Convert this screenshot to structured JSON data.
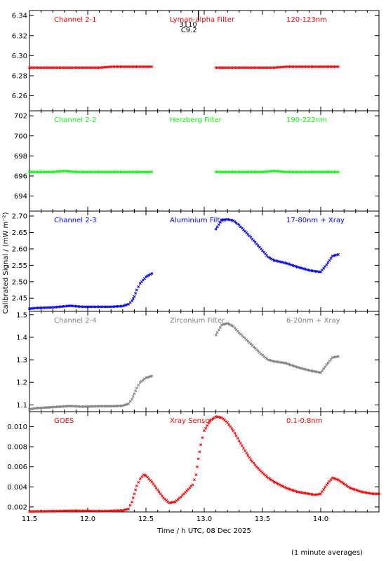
{
  "chart_data": {
    "type": "scatter",
    "xlabel": "Time / h UTC, 08 Dec 2025",
    "ylabel": "Calibrated Signal / (mW m⁻²)",
    "footnote": "(1 minute averages)",
    "xlim": [
      11.5,
      14.5
    ],
    "xticks": [
      "11.5",
      "12.0",
      "12.5",
      "13.0",
      "13.5",
      "14.0"
    ],
    "flare_marker": {
      "x": 12.95,
      "label_top": "3110",
      "label_bottom": "C9.2"
    },
    "panels": [
      {
        "channel": "Channel 2-1",
        "filter": "Lyman-alpha Filter",
        "band": "120-123nm",
        "color": "#ff0000",
        "ylim": [
          6.245,
          6.345
        ],
        "yticks": [
          "6.26",
          "6.28",
          "6.30",
          "6.32",
          "6.34"
        ],
        "series": [
          {
            "x": [
              11.5,
              11.6,
              11.7,
              11.8,
              11.9,
              12.0,
              12.1,
              12.2,
              12.3,
              12.4,
              12.55
            ],
            "y": [
              6.288,
              6.288,
              6.288,
              6.288,
              6.288,
              6.288,
              6.288,
              6.289,
              6.289,
              6.289,
              6.289
            ]
          },
          {
            "x": [
              13.1,
              13.2,
              13.3,
              13.4,
              13.5,
              13.6,
              13.7,
              13.8,
              13.9,
              14.0,
              14.15
            ],
            "y": [
              6.288,
              6.288,
              6.288,
              6.288,
              6.288,
              6.288,
              6.289,
              6.289,
              6.289,
              6.289,
              6.289
            ]
          }
        ]
      },
      {
        "channel": "Channel 2-2",
        "filter": "Herzberg Filter",
        "band": "190-222nm",
        "color": "#00ff00",
        "ylim": [
          692.5,
          702.5
        ],
        "yticks": [
          "694",
          "696",
          "698",
          "700",
          "702"
        ],
        "series": [
          {
            "x": [
              11.5,
              11.6,
              11.7,
              11.8,
              11.9,
              12.0,
              12.1,
              12.2,
              12.3,
              12.4,
              12.55
            ],
            "y": [
              696.4,
              696.4,
              696.4,
              696.5,
              696.4,
              696.4,
              696.4,
              696.4,
              696.4,
              696.4,
              696.4
            ]
          },
          {
            "x": [
              13.1,
              13.2,
              13.3,
              13.4,
              13.5,
              13.6,
              13.7,
              13.8,
              13.9,
              14.0,
              14.15
            ],
            "y": [
              696.4,
              696.4,
              696.4,
              696.4,
              696.4,
              696.5,
              696.4,
              696.4,
              696.4,
              696.4,
              696.4
            ]
          }
        ]
      },
      {
        "channel": "Channel 2-3",
        "filter": "Aluminium Filter",
        "band": "17-80nm + Xray",
        "color": "#0000ff",
        "ylim": [
          2.41,
          2.715
        ],
        "yticks": [
          "2.45",
          "2.50",
          "2.55",
          "2.60",
          "2.65",
          "2.70"
        ],
        "series": [
          {
            "x": [
              11.5,
              11.55,
              11.7,
              11.85,
              11.95,
              12.1,
              12.2,
              12.3,
              12.35,
              12.38,
              12.4,
              12.42,
              12.45,
              12.5,
              12.55
            ],
            "y": [
              2.418,
              2.42,
              2.422,
              2.427,
              2.424,
              2.424,
              2.424,
              2.426,
              2.432,
              2.442,
              2.455,
              2.475,
              2.495,
              2.515,
              2.525
            ]
          },
          {
            "x": [
              13.1,
              13.15,
              13.2,
              13.25,
              13.3,
              13.4,
              13.5,
              13.55,
              13.6,
              13.7,
              13.8,
              13.9,
              13.95,
              14.0,
              14.05,
              14.1,
              14.15
            ],
            "y": [
              2.66,
              2.688,
              2.69,
              2.686,
              2.672,
              2.635,
              2.595,
              2.575,
              2.565,
              2.557,
              2.545,
              2.535,
              2.532,
              2.53,
              2.552,
              2.578,
              2.583
            ]
          }
        ]
      },
      {
        "channel": "Channel 2-4",
        "filter": "Zirconium Filter",
        "band": "6-20nm + Xray",
        "color": "#7f7f7f",
        "ylim": [
          1.07,
          1.515
        ],
        "yticks": [
          "1.1",
          "1.2",
          "1.3",
          "1.4",
          "1.5"
        ],
        "series": [
          {
            "x": [
              11.5,
              11.55,
              11.7,
              11.85,
              11.95,
              12.1,
              12.2,
              12.3,
              12.35,
              12.38,
              12.4,
              12.42,
              12.45,
              12.5,
              12.55
            ],
            "y": [
              1.08,
              1.085,
              1.09,
              1.095,
              1.092,
              1.094,
              1.094,
              1.096,
              1.105,
              1.125,
              1.15,
              1.175,
              1.2,
              1.22,
              1.228
            ]
          },
          {
            "x": [
              13.1,
              13.15,
              13.2,
              13.25,
              13.3,
              13.4,
              13.5,
              13.55,
              13.6,
              13.7,
              13.8,
              13.9,
              13.95,
              14.0,
              14.05,
              14.1,
              14.15
            ],
            "y": [
              1.41,
              1.455,
              1.462,
              1.448,
              1.42,
              1.37,
              1.32,
              1.3,
              1.293,
              1.285,
              1.267,
              1.253,
              1.248,
              1.243,
              1.278,
              1.31,
              1.315
            ]
          }
        ]
      },
      {
        "channel": "GOES",
        "filter": "Xray Sensor",
        "band": "0.1-0.8nm",
        "color": "#ff0000",
        "ylim": [
          0.0015,
          0.0115
        ],
        "yticks": [
          "0.002",
          "0.004",
          "0.006",
          "0.008",
          "0.010"
        ],
        "series": [
          {
            "x": [
              11.5,
              11.6,
              11.7,
              11.8,
              11.9,
              12.0,
              12.1,
              12.2,
              12.3,
              12.35,
              12.38,
              12.4,
              12.42,
              12.45,
              12.48,
              12.5,
              12.55,
              12.6,
              12.65,
              12.7,
              12.75,
              12.8,
              12.85,
              12.9,
              12.93,
              12.95,
              12.97,
              13.0,
              13.05,
              13.1,
              13.15,
              13.2,
              13.25,
              13.3,
              13.35,
              13.4,
              13.45,
              13.5,
              13.55,
              13.6,
              13.65,
              13.7,
              13.75,
              13.8,
              13.85,
              13.9,
              13.95,
              14.0,
              14.05,
              14.1,
              14.15,
              14.2,
              14.25,
              14.3,
              14.35,
              14.4,
              14.45,
              14.5
            ],
            "y": [
              0.00155,
              0.00156,
              0.00158,
              0.0016,
              0.00162,
              0.0016,
              0.00158,
              0.0016,
              0.00165,
              0.0018,
              0.0025,
              0.0033,
              0.0041,
              0.0048,
              0.0052,
              0.0051,
              0.0045,
              0.0037,
              0.0029,
              0.0024,
              0.0025,
              0.003,
              0.0036,
              0.0042,
              0.0052,
              0.0068,
              0.0082,
              0.0096,
              0.0106,
              0.011,
              0.0109,
              0.0104,
              0.0096,
              0.0086,
              0.0076,
              0.0067,
              0.006,
              0.0054,
              0.0049,
              0.0045,
              0.0042,
              0.0039,
              0.0037,
              0.0035,
              0.0034,
              0.0033,
              0.0032,
              0.0033,
              0.0042,
              0.0049,
              0.0047,
              0.0043,
              0.0039,
              0.0037,
              0.0035,
              0.0034,
              0.0033,
              0.0033
            ]
          }
        ]
      }
    ]
  }
}
